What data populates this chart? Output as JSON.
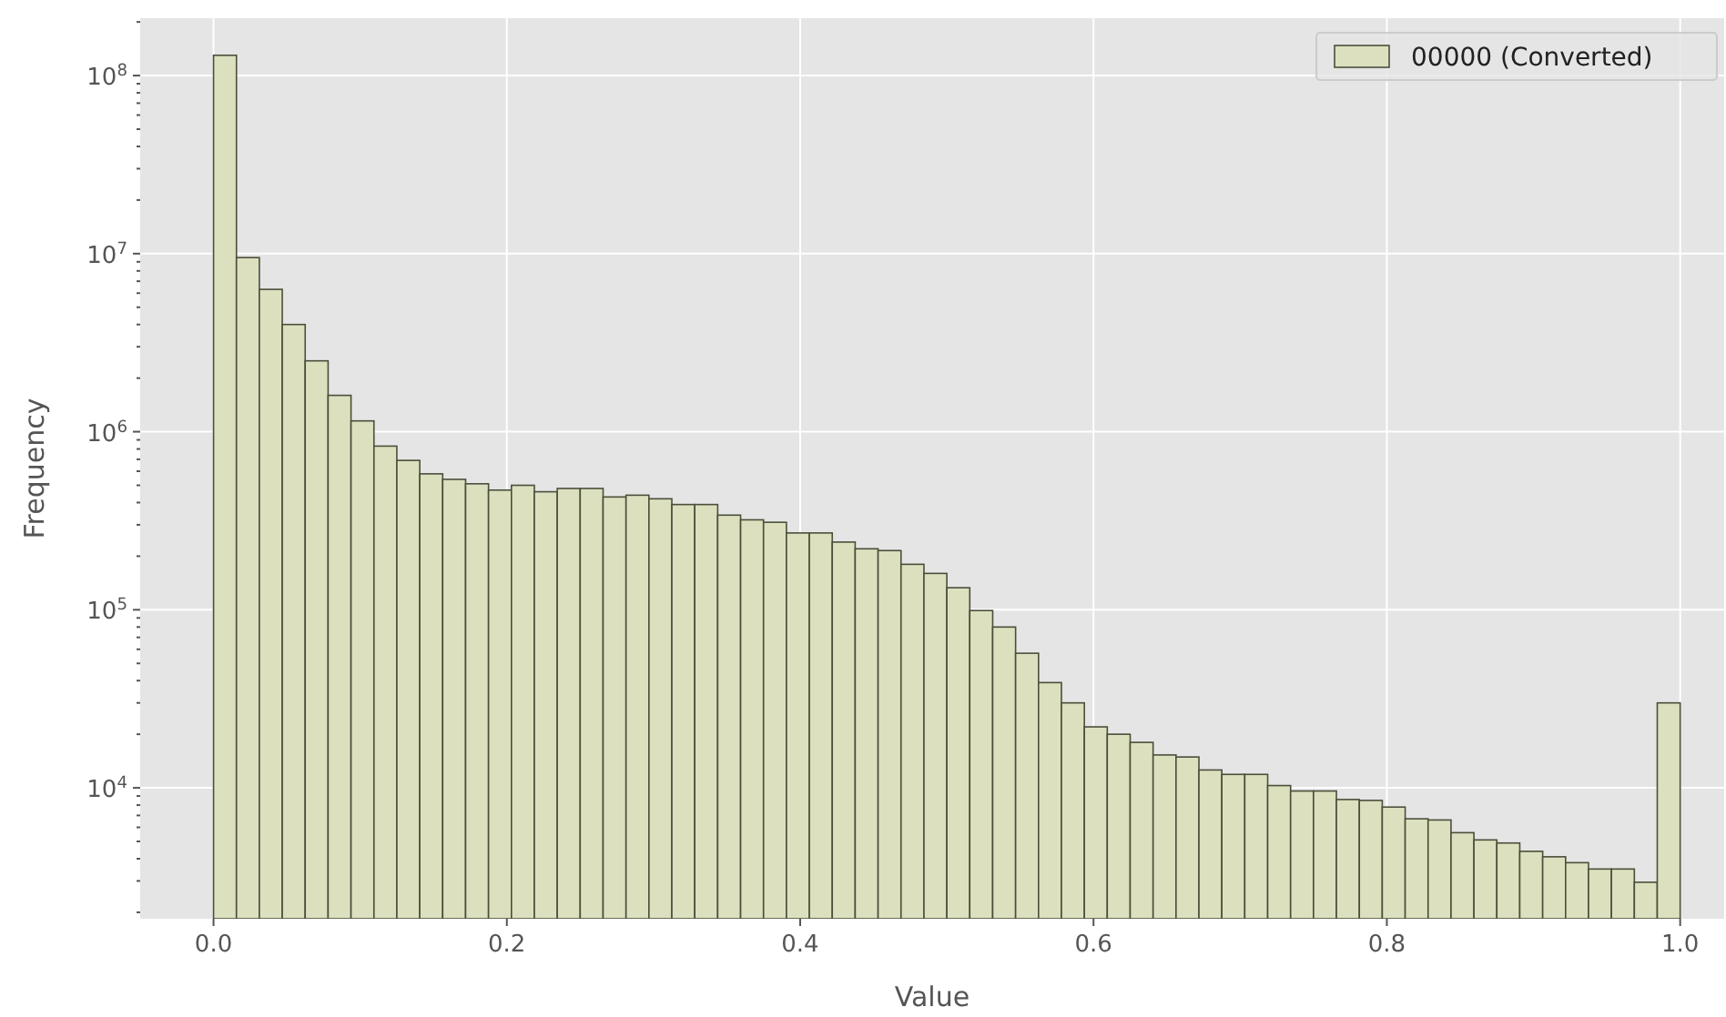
{
  "chart_data": {
    "type": "histogram",
    "xlabel": "Value",
    "ylabel": "Frequency",
    "log": "y",
    "grid": true,
    "legend": "top right",
    "series": [
      {
        "name": "00000 (Converted)",
        "color": "#dde0bf",
        "values": [
          130000000,
          9500000,
          6300000,
          4000000,
          2500000,
          1600000,
          1150000,
          830000,
          690000,
          580000,
          540000,
          510000,
          470000,
          500000,
          460000,
          480000,
          480000,
          430000,
          440000,
          420000,
          390000,
          390000,
          340000,
          320000,
          310000,
          270000,
          270000,
          240000,
          220000,
          215000,
          180000,
          160000,
          133000,
          99000,
          80000,
          57000,
          39000,
          30000,
          22000,
          20000,
          18000,
          15300,
          14900,
          12600,
          11900,
          11900,
          10300,
          9600,
          9600,
          8600,
          8500,
          7800,
          6700,
          6600,
          5600,
          5100,
          4900,
          4400,
          4100,
          3800,
          3500,
          3500,
          2950,
          30000
        ]
      }
    ],
    "bins": [
      0,
      0.015625,
      0.03125,
      0.046875,
      0.0625,
      0.078125,
      0.09375,
      0.109375,
      0.125,
      0.140625,
      0.15625,
      0.171875,
      0.1875,
      0.203125,
      0.21875,
      0.234375,
      0.25,
      0.265625,
      0.28125,
      0.296875,
      0.3125,
      0.328125,
      0.34375,
      0.359375,
      0.375,
      0.390625,
      0.40625,
      0.421875,
      0.4375,
      0.453125,
      0.46875,
      0.484375,
      0.5,
      0.515625,
      0.53125,
      0.546875,
      0.5625,
      0.578125,
      0.59375,
      0.609375,
      0.625,
      0.640625,
      0.65625,
      0.671875,
      0.6875,
      0.703125,
      0.71875,
      0.734375,
      0.75,
      0.765625,
      0.78125,
      0.796875,
      0.8125,
      0.828125,
      0.84375,
      0.859375,
      0.875,
      0.890625,
      0.90625,
      0.921875,
      0.9375,
      0.953125,
      0.96875,
      0.984375,
      1
    ],
    "xlim": [
      -0.05,
      1.03
    ],
    "xticks": [
      {
        "value": 0,
        "label": "0.0"
      },
      0.2,
      0.4,
      0.6,
      0.8,
      {
        "value": 1,
        "label": "1.0"
      }
    ],
    "ylim": [
      1840,
      210000000
    ],
    "yticks": [
      {
        "value": 2000,
        "label": null
      },
      {
        "value": 3000,
        "label": null
      },
      {
        "value": 4000,
        "label": null
      },
      {
        "value": 5000,
        "label": null
      },
      {
        "value": 6000,
        "label": null
      },
      {
        "value": 7000,
        "label": null
      },
      {
        "value": 8000,
        "label": null
      },
      {
        "value": 9000,
        "label": null
      },
      {
        "value": 10000,
        "label": "10$^{4}$"
      },
      {
        "value": 20000,
        "label": null
      },
      {
        "value": 30000,
        "label": null
      },
      {
        "value": 40000,
        "label": null
      },
      {
        "value": 50000,
        "label": null
      },
      {
        "value": 60000,
        "label": null
      },
      {
        "value": 70000,
        "label": null
      },
      {
        "value": 80000,
        "label": null
      },
      {
        "value": 90000,
        "label": null
      },
      {
        "value": 100000,
        "label": "10$^{5}$"
      },
      {
        "value": 200000,
        "label": null
      },
      {
        "value": 300000,
        "label": null
      },
      {
        "value": 400000,
        "label": null
      },
      {
        "value": 500000,
        "label": null
      },
      {
        "value": 600000,
        "label": null
      },
      {
        "value": 700000,
        "label": null
      },
      {
        "value": 800000,
        "label": null
      },
      {
        "value": 900000,
        "label": null
      },
      {
        "value": 1000000,
        "label": "10$^{6}$"
      },
      {
        "value": 2000000,
        "label": null
      },
      {
        "value": 3000000,
        "label": null
      },
      {
        "value": 4000000,
        "label": null
      },
      {
        "value": 5000000,
        "label": null
      },
      {
        "value": 6000000,
        "label": null
      },
      {
        "value": 7000000,
        "label": null
      },
      {
        "value": 8000000,
        "label": null
      },
      {
        "value": 9000000,
        "label": null
      },
      {
        "value": 10000000,
        "label": "10$^{7}$"
      },
      {
        "value": 20000000,
        "label": null
      },
      {
        "value": 30000000,
        "label": null
      },
      {
        "value": 40000000,
        "label": null
      },
      {
        "value": 50000000,
        "label": null
      },
      {
        "value": 60000000,
        "label": null
      },
      {
        "value": 70000000,
        "label": null
      },
      {
        "value": 80000000,
        "label": null
      },
      {
        "value": 90000000,
        "label": null
      },
      {
        "value": 100000000,
        "label": "10$^{8}$"
      },
      {
        "value": 200000000,
        "label": null
      }
    ]
  }
}
